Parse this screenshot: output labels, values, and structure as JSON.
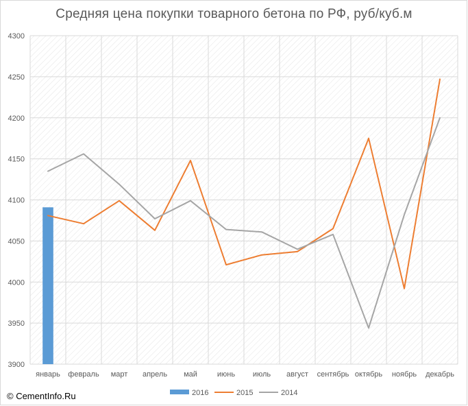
{
  "chart_data": {
    "type": "line",
    "title": "Средняя цена покупки товарного бетона по РФ, руб/куб.м",
    "categories": [
      "январь",
      "февраль",
      "март",
      "апрель",
      "май",
      "июнь",
      "июль",
      "август",
      "сентябрь",
      "октябрь",
      "ноябрь",
      "декабрь"
    ],
    "ylim": [
      3900,
      4300
    ],
    "yticks": [
      3900,
      3950,
      4000,
      4050,
      4100,
      4150,
      4200,
      4250,
      4300
    ],
    "grid": true,
    "legend_position": "bottom",
    "series": [
      {
        "name": "2016",
        "kind": "bar",
        "color": "#5b9bd5",
        "values": [
          4091,
          null,
          null,
          null,
          null,
          null,
          null,
          null,
          null,
          null,
          null,
          null
        ]
      },
      {
        "name": "2015",
        "kind": "line",
        "color": "#ed7d31",
        "values": [
          4081,
          4071,
          4099,
          4063,
          4148,
          4021,
          4033,
          4037,
          4065,
          4175,
          3992,
          4247
        ]
      },
      {
        "name": "2014",
        "kind": "line",
        "color": "#a5a5a5",
        "values": [
          4135,
          4156,
          4119,
          4077,
          4099,
          4064,
          4061,
          4040,
          4058,
          3944,
          4082,
          4200
        ]
      }
    ]
  },
  "footer": {
    "copyright": "© CementInfo.Ru"
  }
}
